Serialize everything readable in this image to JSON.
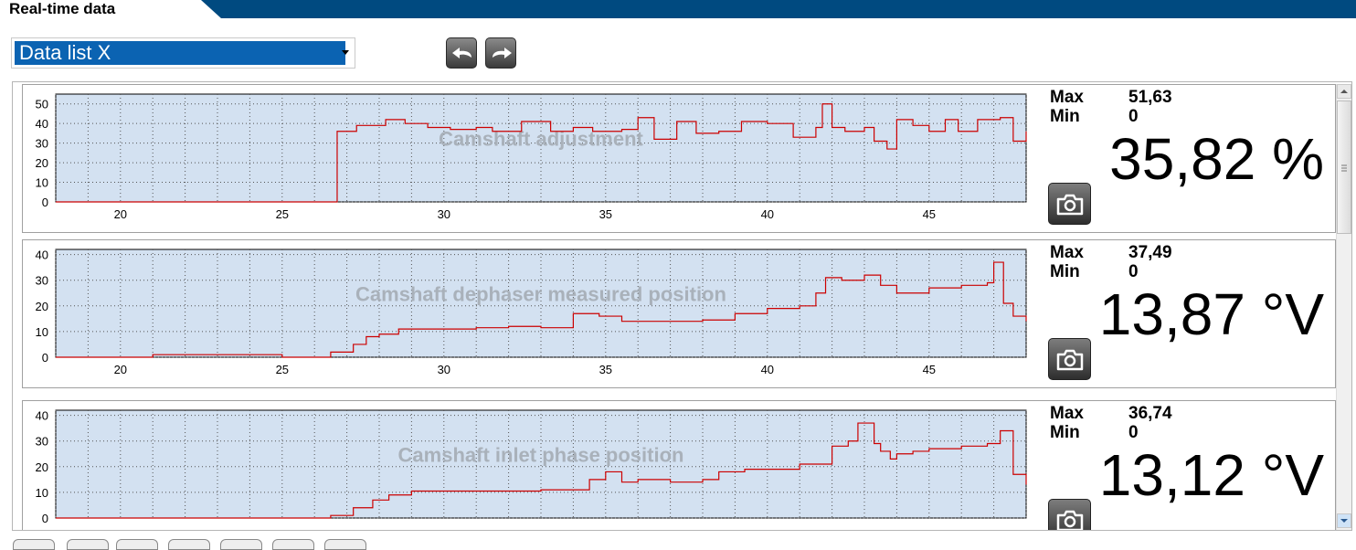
{
  "header": {
    "title": "Real-time data",
    "accent": "#004a80"
  },
  "selector": {
    "value": "Data list X"
  },
  "nav": {
    "back_icon": "undo-arrow-icon",
    "forward_icon": "redo-arrow-icon"
  },
  "colors": {
    "plot_bg": "#d3e1f1",
    "trace": "#cc0000",
    "select_bg": "#0b63b2"
  },
  "labels": {
    "max": "Max",
    "min": "Min"
  },
  "panels": [
    {
      "name": "Camshaft adjustment",
      "max": "51,63",
      "min": "0",
      "value": "35,82 %",
      "y_ticks": [
        "50",
        "40",
        "30",
        "20",
        "10",
        "0"
      ],
      "x_ticks": [
        "20",
        "25",
        "30",
        "35",
        "40",
        "45"
      ],
      "ylim": [
        0,
        55
      ],
      "xlim": [
        18,
        48
      ]
    },
    {
      "name": "Camshaft dephaser measured position",
      "max": "37,49",
      "min": "0",
      "value": "13,87 °V",
      "y_ticks": [
        "40",
        "30",
        "20",
        "10",
        "0"
      ],
      "x_ticks": [
        "20",
        "25",
        "30",
        "35",
        "40",
        "45"
      ],
      "ylim": [
        0,
        42
      ],
      "xlim": [
        18,
        48
      ]
    },
    {
      "name": "Camshaft inlet phase position",
      "max": "36,74",
      "min": "0",
      "value": "13,12 °V",
      "y_ticks": [
        "40",
        "30",
        "20",
        "10",
        "0"
      ],
      "x_ticks": [],
      "ylim": [
        0,
        42
      ],
      "xlim": [
        18,
        48
      ]
    }
  ],
  "chart_data": [
    {
      "type": "line",
      "title": "Camshaft adjustment",
      "xlim": [
        18,
        48
      ],
      "ylim": [
        0,
        55
      ],
      "series": [
        {
          "x": [
            18,
            26.6,
            26.7,
            27.3,
            28.2,
            28.8,
            29.5,
            30.2,
            31,
            31.5,
            32.4,
            33.3,
            34,
            34.6,
            35.5,
            36,
            36.5,
            37.2,
            37.8,
            38.5,
            39.2,
            40,
            40.8,
            41.5,
            41.7,
            42,
            42.4,
            43,
            43.3,
            43.7,
            44,
            44.5,
            45,
            45.5,
            45.9,
            46.5,
            47.2,
            47.6,
            48
          ],
          "y": [
            0,
            0,
            36,
            39,
            42,
            40,
            38,
            37,
            38,
            36,
            41,
            36,
            38,
            36,
            37,
            43,
            32,
            41,
            35,
            36,
            41,
            40,
            33,
            38,
            50,
            38,
            36,
            38,
            31,
            27,
            42,
            39,
            36,
            42,
            36,
            42,
            43,
            31,
            36
          ]
        }
      ]
    },
    {
      "type": "line",
      "title": "Camshaft dephaser measured position",
      "xlim": [
        18,
        48
      ],
      "ylim": [
        0,
        42
      ],
      "series": [
        {
          "x": [
            18,
            21,
            25,
            26.5,
            27.2,
            27.6,
            28,
            28.6,
            30,
            31,
            32,
            33,
            34,
            34.8,
            35.5,
            36,
            37,
            38,
            39,
            40,
            41,
            41.5,
            41.8,
            42.3,
            43,
            43.5,
            44,
            45,
            46,
            46.8,
            47,
            47.3,
            47.6,
            48
          ],
          "y": [
            0,
            1,
            0,
            2,
            5,
            8,
            9,
            11,
            11,
            11.5,
            12,
            11.5,
            17,
            16,
            14,
            14,
            14,
            14.5,
            17,
            19,
            20,
            25,
            31,
            30,
            32,
            28,
            25,
            27,
            28,
            29,
            37,
            21,
            16,
            14
          ]
        }
      ]
    },
    {
      "type": "line",
      "title": "Camshaft inlet phase position",
      "xlim": [
        18,
        48
      ],
      "ylim": [
        0,
        42
      ],
      "series": [
        {
          "x": [
            18,
            26,
            26.5,
            27.2,
            27.8,
            28.3,
            29,
            31,
            33,
            34.5,
            35,
            35.5,
            36,
            37,
            38,
            38.5,
            39.3,
            41,
            42,
            42.5,
            42.8,
            43.3,
            43.5,
            43.8,
            44,
            44.5,
            45,
            46,
            46.8,
            47.2,
            47.6,
            48
          ],
          "y": [
            0,
            0,
            1,
            4,
            7,
            9,
            10.5,
            10.5,
            11,
            15,
            18,
            14,
            15,
            14,
            15,
            18,
            19,
            21,
            28,
            30,
            37,
            29,
            26,
            23,
            25,
            26,
            27,
            28,
            29,
            34,
            17,
            13
          ]
        }
      ]
    }
  ]
}
